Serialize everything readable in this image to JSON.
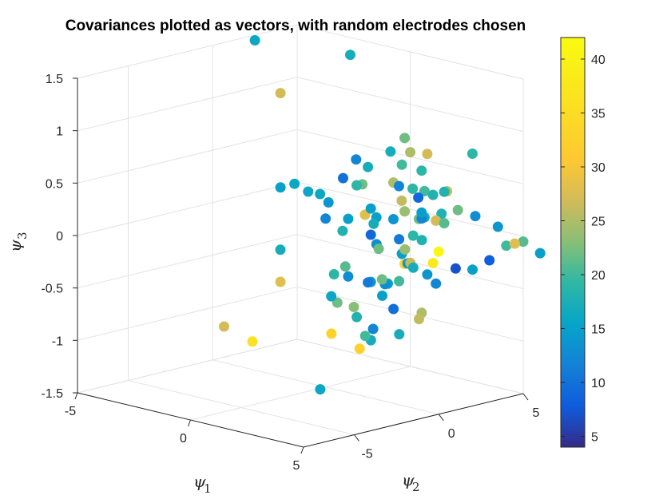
{
  "chart_data": {
    "type": "scatter",
    "title": "Covariances plotted as vectors, with random electrodes chosen",
    "axes": {
      "psi1": {
        "label": "ψ",
        "sub": "1",
        "range": [
          -5,
          5
        ],
        "ticks": [
          "-5",
          "0",
          "5"
        ]
      },
      "psi2": {
        "label": "ψ",
        "sub": "2",
        "range": [
          -8,
          5
        ],
        "ticks": [
          "-5",
          "0",
          "5"
        ]
      },
      "psi3": {
        "label": "ψ",
        "sub": "3",
        "range": [
          -1.5,
          1.5
        ],
        "ticks": [
          "-1.5",
          "-1",
          "-0.5",
          "0",
          "0.5",
          "1",
          "1.5"
        ]
      }
    },
    "colorbar": {
      "range": [
        4,
        42
      ],
      "ticks": [
        "5",
        "10",
        "15",
        "20",
        "25",
        "30",
        "35",
        "40"
      ],
      "colormap": "parula"
    },
    "grid": true,
    "points": [
      [
        -5.0,
        2.5,
        1.45,
        16
      ],
      [
        -2.5,
        4.8,
        1.35,
        17
      ],
      [
        -2.0,
        0.0,
        1.2,
        27
      ],
      [
        2.0,
        2.0,
        0.9,
        22
      ],
      [
        3.0,
        2.0,
        0.8,
        27
      ],
      [
        1.0,
        2.5,
        0.7,
        17
      ],
      [
        1.5,
        3.0,
        0.7,
        25
      ],
      [
        0.0,
        1.8,
        0.6,
        12
      ],
      [
        2.0,
        3.0,
        0.55,
        19
      ],
      [
        0.0,
        2.5,
        0.5,
        17
      ],
      [
        1.5,
        2.0,
        0.45,
        25
      ],
      [
        2.5,
        1.8,
        0.45,
        19
      ],
      [
        0.5,
        1.5,
        0.4,
        22
      ],
      [
        2.5,
        2.5,
        0.4,
        20
      ],
      [
        1.0,
        3.0,
        0.35,
        12
      ],
      [
        2.0,
        2.8,
        0.3,
        9
      ],
      [
        -1.0,
        0.3,
        0.3,
        16
      ],
      [
        -1.0,
        1.0,
        0.25,
        16
      ],
      [
        -0.5,
        1.7,
        0.4,
        10
      ],
      [
        4.0,
        1.0,
        0.5,
        18
      ],
      [
        3.5,
        2.5,
        0.45,
        26
      ],
      [
        3.0,
        3.0,
        0.4,
        18
      ],
      [
        4.5,
        1.8,
        0.35,
        22
      ],
      [
        -2.0,
        0.0,
        0.3,
        15
      ],
      [
        -2.5,
        1.5,
        0.25,
        16
      ],
      [
        -1.0,
        1.5,
        0.15,
        14
      ],
      [
        -0.5,
        3.0,
        0.0,
        28
      ],
      [
        0.0,
        3.0,
        0.0,
        15
      ],
      [
        1.0,
        1.5,
        0.05,
        17
      ],
      [
        1.5,
        2.0,
        0.1,
        14
      ],
      [
        2.0,
        2.0,
        0.2,
        24
      ],
      [
        2.5,
        2.5,
        0.15,
        17
      ],
      [
        3.0,
        1.5,
        0.2,
        22
      ],
      [
        3.5,
        1.0,
        0.25,
        12
      ],
      [
        4.0,
        1.5,
        0.3,
        18
      ],
      [
        4.5,
        0.5,
        0.3,
        27
      ],
      [
        4.0,
        3.5,
        0.2,
        13
      ],
      [
        3.0,
        3.0,
        0.1,
        21
      ],
      [
        2.5,
        1.0,
        0.0,
        11
      ],
      [
        2.0,
        2.5,
        -0.05,
        19
      ],
      [
        1.5,
        1.0,
        -0.1,
        13
      ],
      [
        0.5,
        2.0,
        -0.1,
        9
      ],
      [
        0.0,
        1.0,
        -0.05,
        18
      ],
      [
        -0.5,
        2.0,
        0.0,
        15
      ],
      [
        -1.5,
        2.0,
        -0.05,
        12
      ],
      [
        1.0,
        1.8,
        -0.2,
        22
      ],
      [
        1.5,
        2.5,
        -0.25,
        15
      ],
      [
        2.0,
        2.0,
        -0.3,
        33
      ],
      [
        2.5,
        1.5,
        -0.25,
        14
      ],
      [
        3.0,
        1.0,
        -0.2,
        26
      ],
      [
        3.5,
        0.5,
        -0.2,
        17
      ],
      [
        4.0,
        1.0,
        -0.15,
        38
      ],
      [
        4.5,
        0.5,
        -0.3,
        12
      ],
      [
        5.0,
        1.0,
        -0.15,
        7
      ],
      [
        5.0,
        2.0,
        -0.2,
        15
      ],
      [
        5.0,
        3.0,
        -0.15,
        8
      ],
      [
        5.0,
        4.0,
        -0.05,
        20
      ],
      [
        5.0,
        0.0,
        0.05,
        41
      ],
      [
        5.0,
        -1.0,
        0.2,
        18
      ],
      [
        5.0,
        -2.0,
        0.15,
        24
      ],
      [
        5.0,
        6.0,
        -0.2,
        15
      ],
      [
        5.0,
        5.0,
        -0.05,
        21
      ],
      [
        5.0,
        -6.0,
        -0.2,
        22
      ],
      [
        5.0,
        4.5,
        -0.05,
        28
      ],
      [
        5.0,
        3.5,
        0.15,
        14
      ],
      [
        3.0,
        2.0,
        -0.35,
        14
      ],
      [
        2.5,
        1.0,
        -0.4,
        20
      ],
      [
        2.0,
        1.0,
        -0.45,
        15
      ],
      [
        1.5,
        1.5,
        -0.5,
        13
      ],
      [
        1.0,
        2.0,
        -0.5,
        22
      ],
      [
        0.5,
        2.0,
        -0.55,
        14
      ],
      [
        0.0,
        2.5,
        -0.6,
        11
      ],
      [
        -0.5,
        2.0,
        -0.55,
        13
      ],
      [
        -1.0,
        2.5,
        -0.5,
        21
      ],
      [
        -1.5,
        2.5,
        -0.6,
        19
      ],
      [
        -0.5,
        1.0,
        -0.7,
        16
      ],
      [
        0.5,
        1.0,
        -0.75,
        23
      ],
      [
        1.0,
        0.5,
        -0.8,
        18
      ],
      [
        1.5,
        0.8,
        -0.9,
        12
      ],
      [
        2.0,
        0.0,
        -0.95,
        17
      ],
      [
        2.5,
        0.0,
        -0.5,
        15
      ],
      [
        3.0,
        0.0,
        -0.6,
        10
      ],
      [
        3.5,
        1.0,
        -0.65,
        25
      ],
      [
        4.0,
        -1.0,
        -0.75,
        17
      ],
      [
        4.5,
        -0.5,
        -0.6,
        26
      ],
      [
        -3.0,
        -2.0,
        -1.0,
        27
      ],
      [
        -1.0,
        -3.0,
        -1.0,
        36
      ],
      [
        1.0,
        -1.0,
        -0.9,
        33
      ],
      [
        3.0,
        -2.0,
        -0.9,
        33
      ],
      [
        1.0,
        1.0,
        -1.0,
        20
      ],
      [
        -2.0,
        0.0,
        -0.6,
        28
      ],
      [
        2.0,
        -3.0,
        -1.3,
        16
      ],
      [
        -3.5,
        2.0,
        -0.45,
        17
      ],
      [
        0.0,
        4.5,
        0.1,
        26
      ],
      [
        1.5,
        2.5,
        0.6,
        20
      ],
      [
        3.5,
        4.0,
        0.75,
        19
      ],
      [
        -0.5,
        2.5,
        0.3,
        19
      ],
      [
        0.5,
        2.0,
        0.15,
        15
      ],
      [
        2.0,
        3.0,
        0.15,
        15
      ]
    ]
  }
}
